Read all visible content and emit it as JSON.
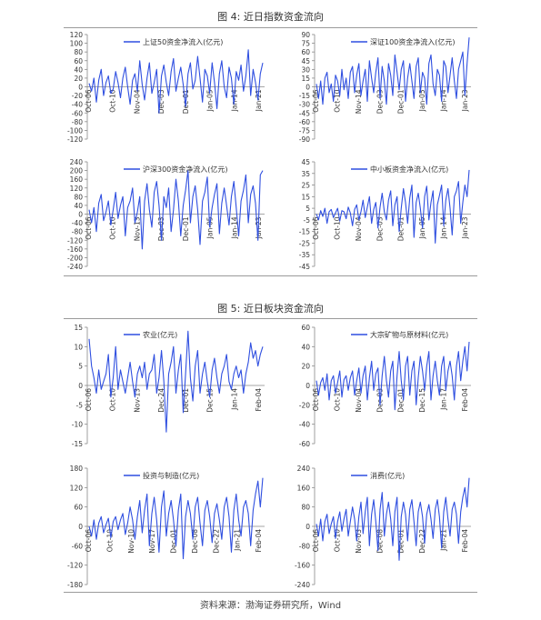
{
  "figures": [
    {
      "title": "图 4:  近日指数资金流向"
    },
    {
      "title": "图 5:  近日板块资金流向"
    }
  ],
  "source": "资料来源：渤海证券研究所，Wind",
  "colors": {
    "line": "#2f4fe0",
    "axis": "#888888",
    "text": "#333333"
  },
  "chart_data": [
    {
      "type": "line",
      "series": [
        {
          "name": "上证50资金净流入(亿元)"
        }
      ],
      "ylim": [
        -120,
        120
      ],
      "yticks": [
        -120,
        -100,
        -80,
        -60,
        -40,
        -20,
        0,
        20,
        40,
        60,
        80,
        100,
        120
      ],
      "xticks": [
        "Oct-06",
        "Oct-10",
        "Nov-04",
        "Dec-03",
        "Dec-01",
        "Jan-05",
        "Jan-14",
        "Jan-21"
      ],
      "values": [
        8,
        -10,
        20,
        -35,
        15,
        40,
        -20,
        10,
        25,
        -15,
        -5,
        35,
        10,
        -25,
        20,
        45,
        0,
        -40,
        15,
        30,
        -10,
        60,
        5,
        -30,
        20,
        55,
        -15,
        10,
        40,
        -60,
        25,
        50,
        10,
        -20,
        35,
        65,
        -10,
        20,
        45,
        5,
        -45,
        30,
        55,
        -5,
        15,
        70,
        20,
        -35,
        40,
        25,
        -15,
        55,
        10,
        -50,
        30,
        60,
        0,
        -25,
        45,
        20,
        -40,
        35,
        15,
        50,
        -10,
        25,
        85,
        -20,
        40,
        10,
        -30,
        30,
        55
      ]
    },
    {
      "type": "line",
      "series": [
        {
          "name": "深证100资金净流入(亿元)"
        }
      ],
      "ylim": [
        -90,
        90
      ],
      "yticks": [
        -90,
        -75,
        -60,
        -45,
        -30,
        -15,
        0,
        15,
        30,
        45,
        60,
        75,
        90
      ],
      "xticks": [
        "Oct-06",
        "Oct-10",
        "Nov-14",
        "Dec-03",
        "Dec-01",
        "Jan-05",
        "Jan-14",
        "Jan-23"
      ],
      "values": [
        5,
        -20,
        10,
        -30,
        15,
        25,
        -10,
        5,
        -25,
        20,
        10,
        -15,
        30,
        -5,
        15,
        -20,
        25,
        35,
        -10,
        20,
        40,
        -15,
        10,
        30,
        -25,
        45,
        15,
        -10,
        25,
        50,
        -20,
        35,
        10,
        -30,
        40,
        20,
        -15,
        55,
        25,
        -5,
        30,
        45,
        -25,
        15,
        40,
        10,
        -20,
        35,
        50,
        -10,
        25,
        15,
        -30,
        40,
        55,
        5,
        -15,
        30,
        20,
        -25,
        45,
        35,
        -10,
        20,
        50,
        10,
        -20,
        30,
        45,
        60,
        -15,
        40,
        85
      ]
    },
    {
      "type": "line",
      "series": [
        {
          "name": "沪深300资金净流入(亿元)"
        }
      ],
      "ylim": [
        -240,
        240
      ],
      "yticks": [
        -240,
        -200,
        -160,
        -120,
        -80,
        -40,
        0,
        40,
        80,
        120,
        160,
        200,
        240
      ],
      "xticks": [
        "Oct-06",
        "Oct-10",
        "Nov-13",
        "Dec-03",
        "Dec-01",
        "Jan-05",
        "Jan-14",
        "Jan-23"
      ],
      "values": [
        20,
        -40,
        30,
        -80,
        50,
        90,
        -30,
        10,
        60,
        -50,
        20,
        100,
        -20,
        40,
        80,
        -100,
        30,
        60,
        120,
        -40,
        10,
        80,
        -160,
        60,
        140,
        20,
        -60,
        100,
        150,
        40,
        -120,
        80,
        30,
        120,
        -80,
        20,
        160,
        60,
        -100,
        40,
        110,
        200,
        -40,
        80,
        130,
        20,
        -140,
        60,
        100,
        170,
        -60,
        30,
        90,
        140,
        -90,
        50,
        120,
        40,
        -50,
        80,
        150,
        30,
        -100,
        60,
        110,
        180,
        -40,
        90,
        130,
        50,
        -120,
        180,
        200
      ]
    },
    {
      "type": "line",
      "series": [
        {
          "name": "中小板资金净流入(亿元)"
        }
      ],
      "ylim": [
        -45,
        45
      ],
      "yticks": [
        -45,
        -35,
        -25,
        -15,
        -5,
        5,
        15,
        25,
        35,
        45
      ],
      "xticks": [
        "Oct-06",
        "Oct-10",
        "Nov-04",
        "Dec-03",
        "Dec-01",
        "Jan-05",
        "Jan-14",
        "Jan-23"
      ],
      "values": [
        0,
        -5,
        3,
        -2,
        5,
        -8,
        2,
        4,
        -3,
        1,
        5,
        -6,
        3,
        2,
        -4,
        6,
        1,
        -10,
        4,
        8,
        -5,
        2,
        12,
        -3,
        6,
        15,
        -8,
        4,
        10,
        -12,
        6,
        18,
        2,
        -5,
        12,
        20,
        -10,
        8,
        15,
        -15,
        5,
        22,
        10,
        -8,
        14,
        25,
        -20,
        10,
        18,
        5,
        -12,
        15,
        24,
        -5,
        10,
        20,
        -25,
        8,
        16,
        25,
        -10,
        12,
        22,
        5,
        -18,
        15,
        20,
        28,
        -8,
        10,
        25,
        15,
        38
      ]
    },
    {
      "type": "line",
      "series": [
        {
          "name": "农业(亿元)"
        }
      ],
      "ylim": [
        -15,
        15
      ],
      "yticks": [
        -15,
        -10,
        -5,
        0,
        5,
        10,
        15
      ],
      "xticks": [
        "Oct-06",
        "Oct-10",
        "Nov-13",
        "Dec-24",
        "Dec-01",
        "Dec-15",
        "Jan-14",
        "Feb-04"
      ],
      "values": [
        12,
        5,
        2,
        -2,
        4,
        -1,
        1,
        3,
        8,
        -3,
        2,
        10,
        -1,
        4,
        1,
        -2,
        2,
        6,
        1,
        -3,
        3,
        5,
        2,
        6,
        -1,
        3,
        4,
        8,
        -2,
        2,
        9,
        1,
        -12,
        3,
        6,
        10,
        -2,
        4,
        8,
        -7,
        3,
        14,
        2,
        -4,
        5,
        9,
        -2,
        3,
        6,
        1,
        -3,
        4,
        7,
        2,
        -2,
        3,
        5,
        8,
        1,
        -1,
        3,
        5,
        2,
        4,
        -2,
        3,
        6,
        11,
        7,
        9,
        5,
        8,
        10
      ]
    },
    {
      "type": "line",
      "series": [
        {
          "name": "大宗矿物与原材料(亿元)"
        }
      ],
      "ylim": [
        -60,
        60
      ],
      "yticks": [
        -60,
        -40,
        -20,
        0,
        20,
        40,
        60
      ],
      "xticks": [
        "Oct-06",
        "Oct-10",
        "Nov-04",
        "Dec-03",
        "Dec-01",
        "Dec-15",
        "Jan-17",
        "Feb-04"
      ],
      "values": [
        5,
        -10,
        3,
        8,
        -5,
        12,
        -15,
        5,
        10,
        -8,
        3,
        15,
        -12,
        6,
        10,
        -5,
        8,
        15,
        -10,
        5,
        18,
        -8,
        10,
        20,
        -15,
        8,
        25,
        -5,
        12,
        18,
        -20,
        10,
        30,
        5,
        -12,
        15,
        25,
        -25,
        10,
        35,
        5,
        -15,
        20,
        30,
        -10,
        15,
        25,
        -20,
        8,
        30,
        15,
        -5,
        20,
        35,
        -15,
        10,
        25,
        5,
        -10,
        20,
        30,
        -5,
        15,
        25,
        10,
        -15,
        20,
        35,
        5,
        25,
        40,
        15,
        45
      ]
    },
    {
      "type": "line",
      "series": [
        {
          "name": "投资与制造(亿元)"
        }
      ],
      "ylim": [
        -180,
        180
      ],
      "yticks": [
        -180,
        -120,
        -60,
        0,
        60,
        120,
        180
      ],
      "xticks": [
        "Oct-06",
        "Oct-10",
        "Nov-10",
        "Nov-17",
        "Dec-01",
        "Dec-08",
        "Dec-22",
        "Jan-21",
        "Feb-04"
      ],
      "values": [
        0,
        -30,
        20,
        -40,
        10,
        30,
        -20,
        5,
        25,
        -35,
        15,
        30,
        -10,
        20,
        40,
        -25,
        10,
        60,
        20,
        -40,
        30,
        80,
        -20,
        50,
        100,
        -60,
        40,
        90,
        20,
        -80,
        60,
        110,
        -30,
        40,
        80,
        20,
        -60,
        50,
        100,
        -100,
        30,
        80,
        40,
        -40,
        60,
        90,
        10,
        -60,
        50,
        80,
        30,
        -50,
        40,
        70,
        20,
        -40,
        60,
        90,
        30,
        -80,
        50,
        100,
        20,
        -30,
        60,
        80,
        40,
        -60,
        50,
        100,
        140,
        60,
        150
      ]
    },
    {
      "type": "line",
      "series": [
        {
          "name": "消费(亿元)"
        }
      ],
      "ylim": [
        -240,
        240
      ],
      "yticks": [
        -240,
        -160,
        -80,
        0,
        80,
        160,
        240
      ],
      "xticks": [
        "Oct-06",
        "Oct-10",
        "Nov-03",
        "Dec-08",
        "Dec-01",
        "Dec-22",
        "Jan-21",
        "Feb-04"
      ],
      "values": [
        10,
        -40,
        30,
        -60,
        20,
        50,
        -30,
        10,
        40,
        -50,
        20,
        60,
        -20,
        30,
        70,
        -40,
        20,
        80,
        30,
        -60,
        40,
        100,
        -30,
        60,
        120,
        -80,
        50,
        110,
        20,
        -100,
        70,
        140,
        -40,
        50,
        100,
        30,
        -80,
        60,
        120,
        -140,
        40,
        100,
        50,
        -60,
        70,
        110,
        20,
        -80,
        60,
        100,
        40,
        -70,
        50,
        90,
        30,
        -50,
        70,
        110,
        40,
        -90,
        60,
        120,
        30,
        -40,
        70,
        100,
        50,
        -70,
        60,
        120,
        160,
        80,
        200
      ]
    }
  ]
}
